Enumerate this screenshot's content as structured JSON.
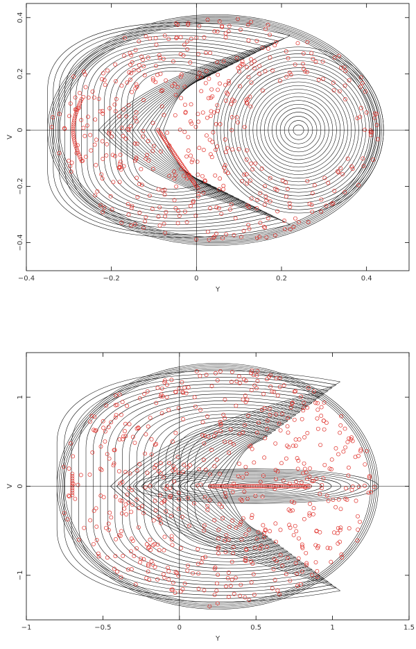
{
  "colors": {
    "curve": "#000000",
    "marker": "#e0302a",
    "frame": "#000000",
    "background": "#ffffff"
  },
  "chart_data": [
    {
      "type": "scatter",
      "title": "",
      "xlabel": "Y",
      "ylabel": "V",
      "xlim": [
        -0.4,
        0.5
      ],
      "ylim": [
        -0.5,
        0.45
      ],
      "xticks": [
        -0.4,
        -0.2,
        0,
        0.2,
        0.4
      ],
      "xtick_labels": [
        "−0.4",
        "−0.2",
        "0",
        "0.2",
        "0.4"
      ],
      "yticks": [
        -0.4,
        -0.2,
        0,
        0.2,
        0.4
      ],
      "ytick_labels": [
        "−0.4",
        "−0.2",
        "0",
        "0.2",
        "0.4"
      ],
      "reference_lines": {
        "x": 0,
        "y": 0
      },
      "boundary": {
        "y_min": -0.35,
        "y_max": 0.44,
        "v_max": 0.41
      },
      "fixed_points": [
        {
          "Y": 0.24,
          "V": 0
        },
        {
          "Y": -0.29,
          "V": 0
        }
      ],
      "series": [
        {
          "style": "contour-lines",
          "description_color": "black"
        },
        {
          "style": "open-circle-markers",
          "description_color": "red"
        }
      ]
    },
    {
      "type": "scatter",
      "title": "",
      "xlabel": "Y",
      "ylabel": "V",
      "xlim": [
        -1,
        1.5
      ],
      "ylim": [
        -1.5,
        1.5
      ],
      "xticks": [
        -1,
        -0.5,
        0,
        0.5,
        1,
        1.5
      ],
      "xtick_labels": [
        "−1",
        "−0.5",
        "0",
        "0.5",
        "1",
        "1.5"
      ],
      "yticks": [
        -1,
        0,
        1
      ],
      "ytick_labels": [
        "−1",
        "0",
        "1"
      ],
      "reference_lines": {
        "x": 0,
        "y": 0
      },
      "boundary": {
        "y_min": -0.8,
        "y_max": 1.3,
        "v_max": 1.38
      },
      "fixed_points": [
        {
          "Y": 0.5,
          "V": 0
        }
      ],
      "series": [
        {
          "style": "contour-lines",
          "description_color": "black"
        },
        {
          "style": "open-circle-markers",
          "description_color": "red"
        }
      ]
    }
  ]
}
